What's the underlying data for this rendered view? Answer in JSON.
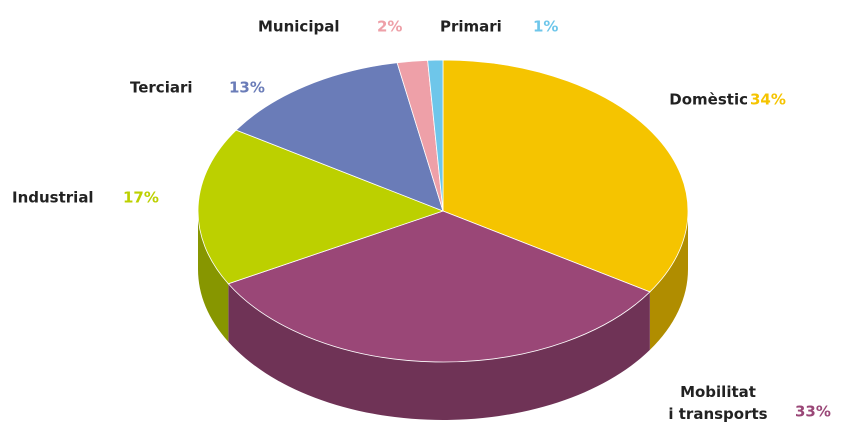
{
  "chart_data": {
    "type": "pie",
    "categories": [
      "Domèstic",
      "Mobilitat\ni transports",
      "Industrial",
      "Terciari",
      "Municipal",
      "Primari"
    ],
    "values": [
      34,
      33,
      17,
      13,
      2,
      1
    ],
    "value_labels": [
      "34%",
      "33%",
      "17%",
      "13%",
      "2%",
      "1%"
    ],
    "colors": [
      "#f5c400",
      "#9a4777",
      "#bcd000",
      "#6a7cb8",
      "#eea0a8",
      "#6ec6ea"
    ]
  }
}
